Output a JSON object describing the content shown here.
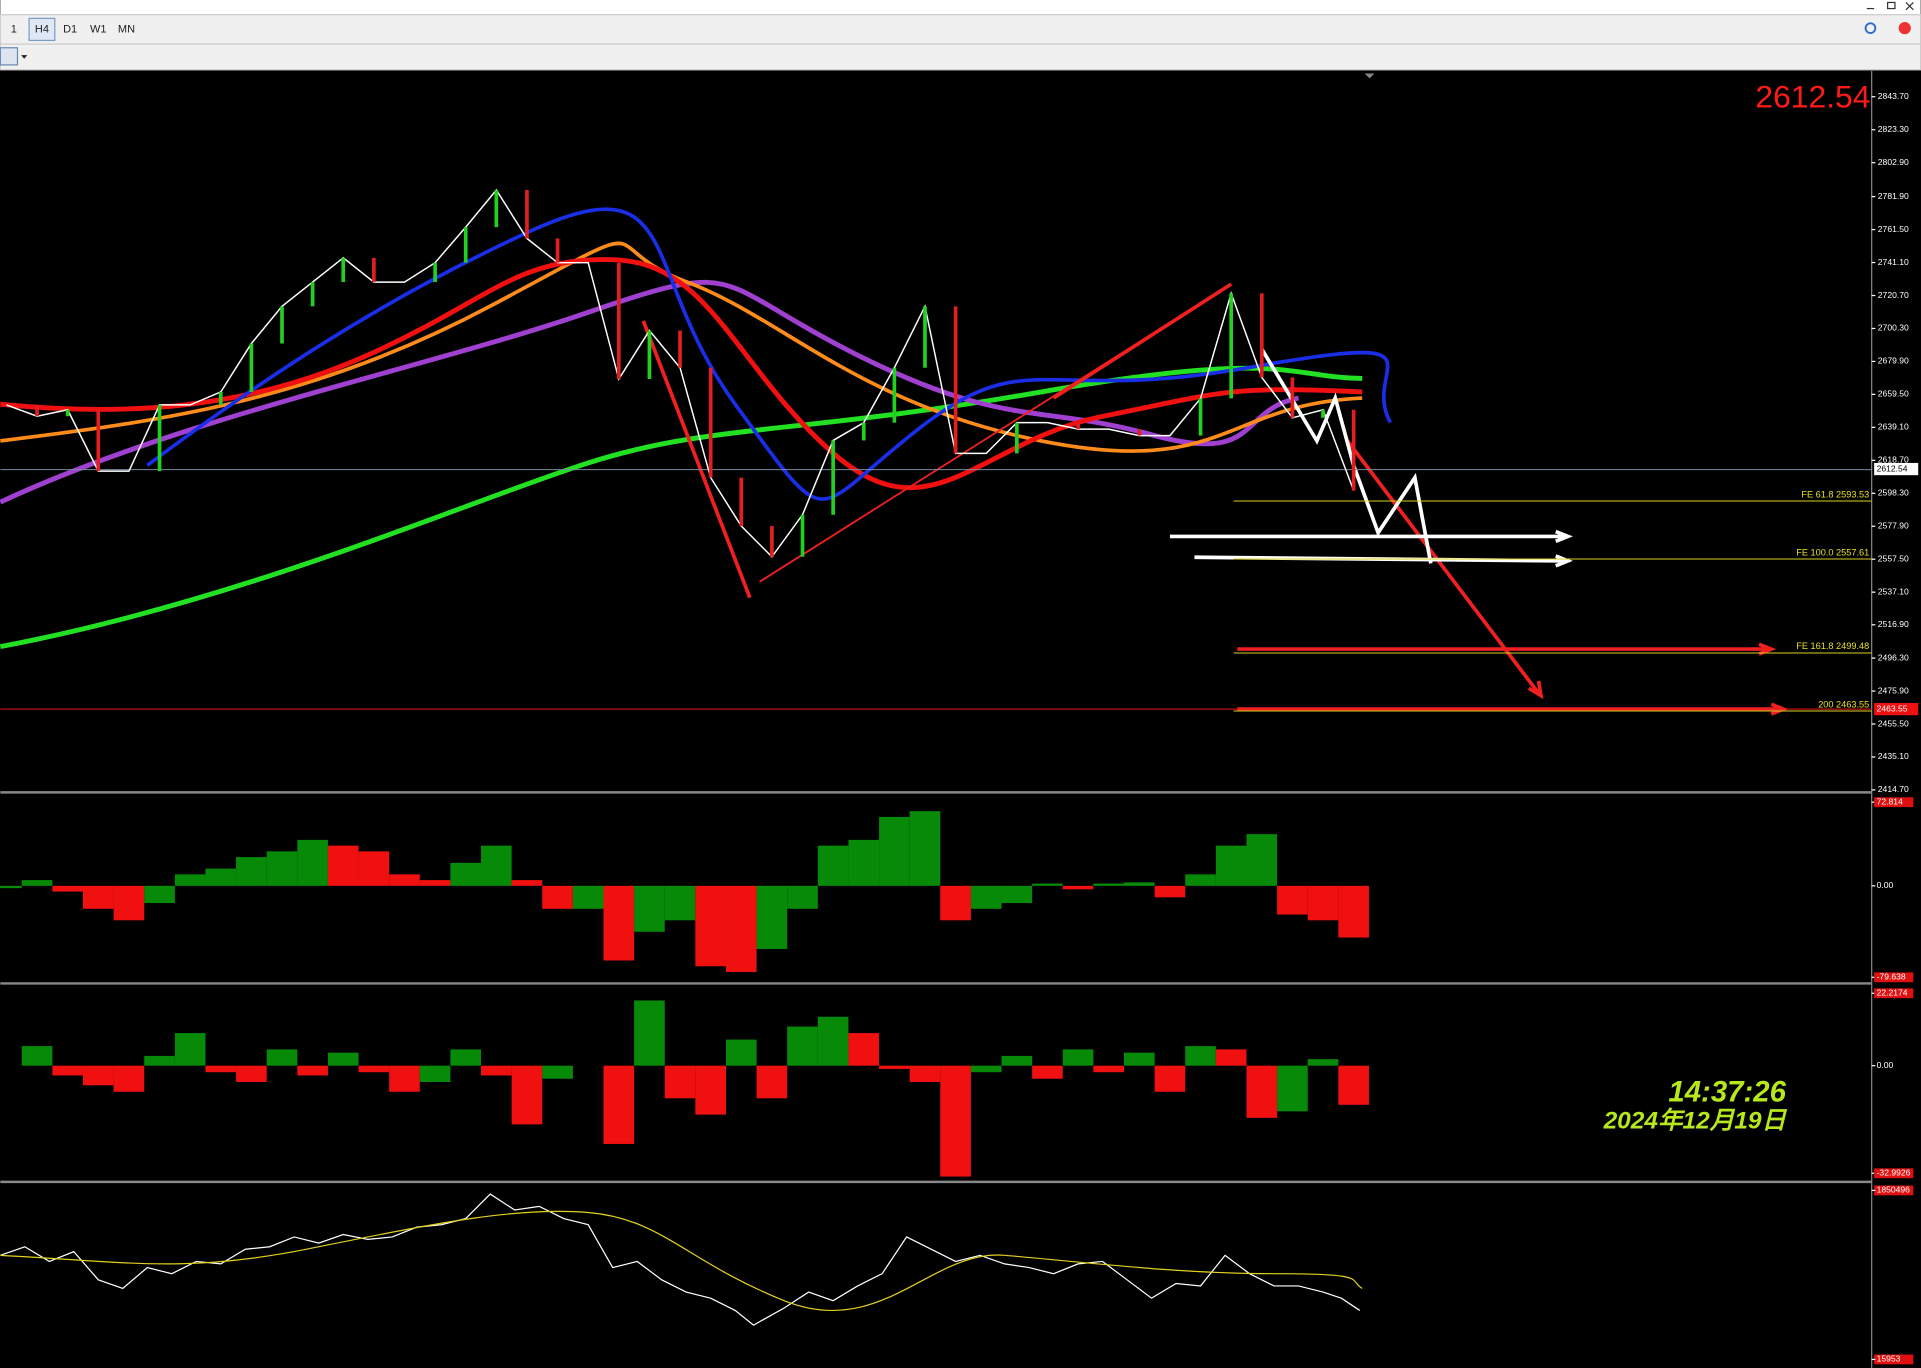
{
  "toolbar": {
    "timeframes": [
      "1",
      "H4",
      "D1",
      "W1",
      "MN"
    ]
  },
  "main_chart": {
    "current_price": "2612.54",
    "axis_price_label": "2612.54",
    "ylim": [
      2414.7,
      2843.7
    ],
    "yticks": [
      {
        "value": 2843.7,
        "label": "2843.70"
      },
      {
        "value": 2823.3,
        "label": "2823.30"
      },
      {
        "value": 2802.9,
        "label": "2802.90"
      },
      {
        "value": 2781.9,
        "label": "2781.90"
      },
      {
        "value": 2761.5,
        "label": "2761.50"
      },
      {
        "value": 2741.1,
        "label": "2741.10"
      },
      {
        "value": 2720.7,
        "label": "2720.70"
      },
      {
        "value": 2700.3,
        "label": "2700.30"
      },
      {
        "value": 2679.9,
        "label": "2679.90"
      },
      {
        "value": 2659.5,
        "label": "2659.50"
      },
      {
        "value": 2639.1,
        "label": "2639.10"
      },
      {
        "value": 2618.7,
        "label": "2618.70"
      },
      {
        "value": 2598.3,
        "label": "2598.30"
      },
      {
        "value": 2577.9,
        "label": "2577.90"
      },
      {
        "value": 2557.5,
        "label": "2557.50"
      },
      {
        "value": 2537.1,
        "label": "2537.10"
      },
      {
        "value": 2516.9,
        "label": "2516.90"
      },
      {
        "value": 2496.3,
        "label": "2496.30"
      },
      {
        "value": 2475.9,
        "label": "2475.90"
      },
      {
        "value": 2455.5,
        "label": "2455.50"
      },
      {
        "value": 2435.1,
        "label": "2435.10"
      },
      {
        "value": 2414.7,
        "label": "2414.70"
      }
    ],
    "close": [
      2653,
      2646,
      2650,
      2612,
      2612,
      2653,
      2653,
      2661,
      2691,
      2714,
      2729,
      2744,
      2729,
      2729,
      2741,
      2763,
      2786,
      2756,
      2741,
      2741,
      2669,
      2699,
      2676,
      2608,
      2578,
      2559,
      2585,
      2631,
      2642,
      2676,
      2714,
      2623,
      2623,
      2642,
      2642,
      2638,
      2638,
      2634,
      2634,
      2657,
      2722,
      2670,
      2645,
      2650,
      2600
    ],
    "fibonacci": [
      {
        "label": "FE 61.8  2593.53",
        "value": 2593.53
      },
      {
        "label": "FE 100.0  2557.61",
        "value": 2557.61
      },
      {
        "label": "FE 161.8  2499.48",
        "value": 2499.48
      },
      {
        "label": "200  2463.55",
        "value": 2463.55
      }
    ],
    "target_price_label": "2463.55"
  },
  "oscillator_1": {
    "ylim": [
      -79.638,
      72.814
    ],
    "yticks": [
      {
        "value": 72.814,
        "label": "72.814"
      },
      {
        "value": 0,
        "label": "0.00"
      },
      {
        "value": -79.638,
        "label": "-79.638"
      }
    ],
    "values": [
      -2,
      5,
      -5,
      -20,
      -30,
      -15,
      10,
      15,
      25,
      30,
      40,
      35,
      30,
      10,
      5,
      20,
      35,
      5,
      -20,
      -20,
      -65,
      -40,
      -30,
      -70,
      -75,
      -55,
      -20,
      35,
      40,
      60,
      65,
      -30,
      -20,
      -15,
      2,
      -3,
      2,
      3,
      -10,
      10,
      35,
      45,
      -25,
      -30,
      -45
    ]
  },
  "oscillator_2": {
    "ylim": [
      -32.9926,
      22.2174
    ],
    "yticks": [
      {
        "value": 22.2174,
        "label": "22.2174"
      },
      {
        "value": 0,
        "label": "0.00"
      },
      {
        "value": -32.9926,
        "label": "-32.9926"
      }
    ],
    "values": [
      0,
      6,
      -3,
      -6,
      -8,
      3,
      10,
      -2,
      -5,
      5,
      -3,
      4,
      -2,
      -8,
      -5,
      5,
      -3,
      -18,
      -4,
      0,
      -24,
      20,
      -10,
      -15,
      8,
      -10,
      12,
      15,
      10,
      -1,
      -5,
      -34,
      -2,
      3,
      -4,
      5,
      -2,
      4,
      -8,
      6,
      5,
      -16,
      -14,
      2,
      -12
    ]
  },
  "volume_pane": {
    "ylim": [
      15953,
      1850496
    ],
    "yticks": [
      1850496,
      15953
    ]
  },
  "clock": {
    "time": "14:37:26",
    "date": "2024年12月19日"
  }
}
